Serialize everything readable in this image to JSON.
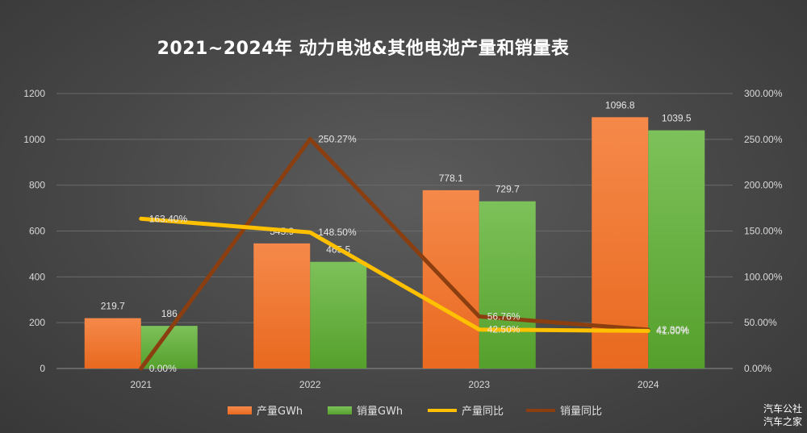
{
  "chart_data": {
    "type": "bar",
    "title": "2021~2024年 动力电池&其他电池产量和销量表",
    "categories": [
      "2021",
      "2022",
      "2023",
      "2024"
    ],
    "series": [
      {
        "name": "产量GWh",
        "type": "bar",
        "axis": "left",
        "values": [
          219.7,
          545.9,
          778.1,
          1096.8
        ],
        "color": "#f07d33"
      },
      {
        "name": "销量GWh",
        "type": "bar",
        "axis": "left",
        "values": [
          186,
          465.5,
          729.7,
          1039.5
        ],
        "color": "#6ab43e"
      },
      {
        "name": "产量同比",
        "type": "line",
        "axis": "right",
        "values": [
          163.4,
          148.5,
          42.5,
          41.0
        ],
        "labels": [
          "163.40%",
          "148.50%",
          "42.50%",
          "41.00%"
        ],
        "color": "#ffc000"
      },
      {
        "name": "销量同比",
        "type": "line",
        "axis": "right",
        "values": [
          0.0,
          250.27,
          56.76,
          42.3
        ],
        "labels": [
          "0.00%",
          "250.27%",
          "56.76%",
          "42.30%"
        ],
        "color": "#8b3e10"
      }
    ],
    "y_left": {
      "min": 0,
      "max": 1200,
      "ticks": [
        "0",
        "200",
        "400",
        "600",
        "800",
        "1000",
        "1200"
      ]
    },
    "y_right": {
      "min": 0,
      "max": 300,
      "ticks": [
        "0.00%",
        "50.00%",
        "100.00%",
        "150.00%",
        "200.00%",
        "250.00%",
        "300.00%"
      ]
    },
    "grid": true,
    "legend": "bottom"
  },
  "watermark": {
    "line1": "汽车公社",
    "line2": "汽车之家"
  }
}
